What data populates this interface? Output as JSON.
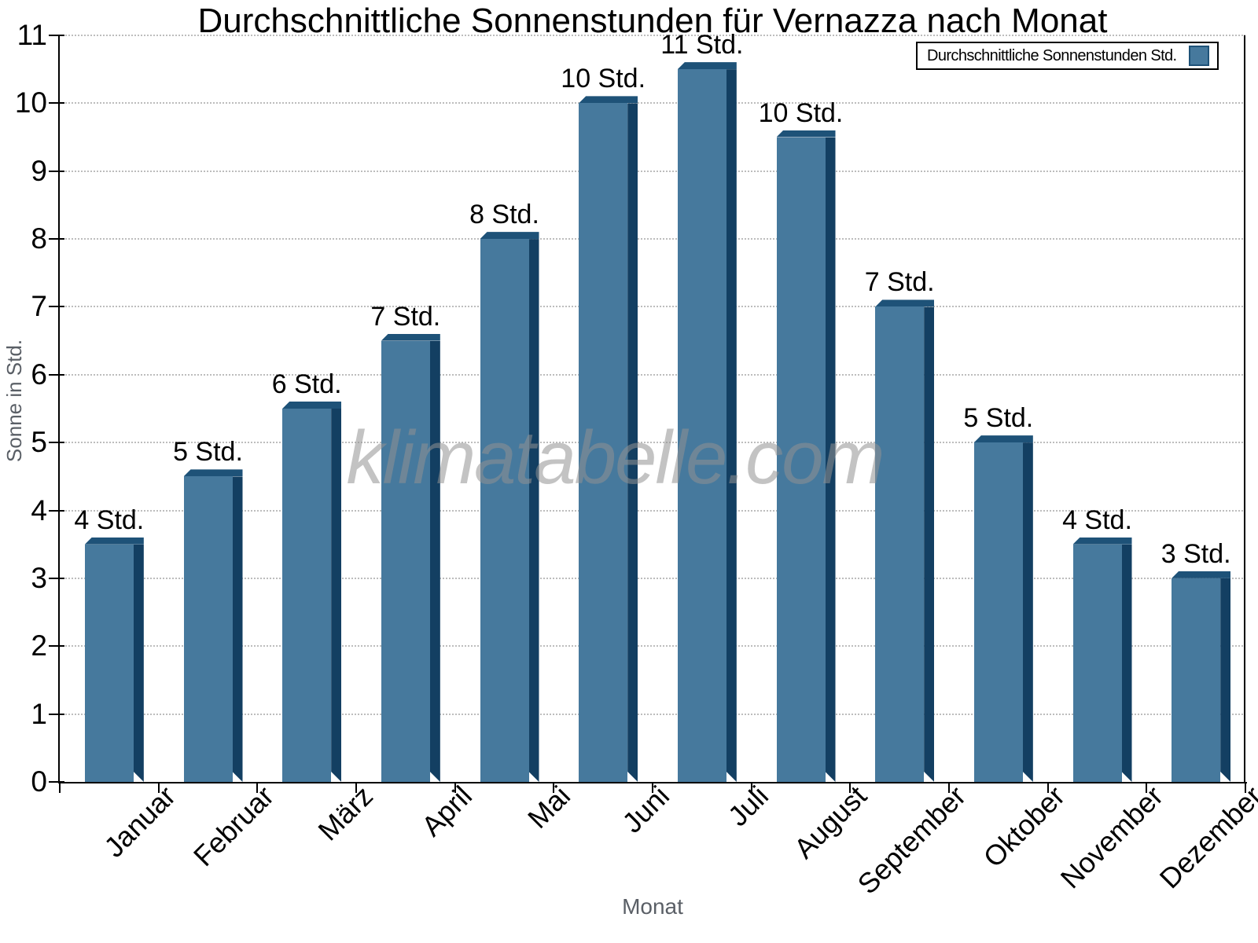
{
  "title": "Durchschnittliche Sonnenstunden für Vernazza nach Monat",
  "watermark": "klimatabelle.com",
  "legend": {
    "label": "Durchschnittliche Sonnenstunden Std.",
    "position": "top-right"
  },
  "axes": {
    "y_label": "Sonne in Std.",
    "x_label": "Monat",
    "y_ticks": [
      0,
      1,
      2,
      3,
      4,
      5,
      6,
      7,
      8,
      9,
      10,
      11
    ]
  },
  "colors": {
    "bar": "#46799d",
    "bar_top_edge": "#1e5278",
    "bar_right_edge": "#133f62",
    "legend_swatch_border": "#1e5278",
    "grid": "#bdbdbd",
    "axis": "#000000",
    "muted_text": "#5a5f66",
    "watermark_gray": "#919191"
  },
  "chart_data": {
    "type": "bar",
    "title": "Durchschnittliche Sonnenstunden für Vernazza nach Monat",
    "xlabel": "Monat",
    "ylabel": "Sonne in Std.",
    "ylim": [
      0,
      11
    ],
    "grid": "horizontal-dotted",
    "legend_position": "top-right",
    "categories": [
      "Januar",
      "Februar",
      "März",
      "April",
      "Mai",
      "Juni",
      "Juli",
      "August",
      "September",
      "Oktober",
      "November",
      "Dezember"
    ],
    "series": [
      {
        "name": "Durchschnittliche Sonnenstunden Std.",
        "values": [
          3.5,
          4.5,
          5.5,
          6.5,
          8.0,
          10.0,
          10.5,
          9.5,
          7.0,
          5.0,
          3.5,
          3.0
        ],
        "bar_labels": [
          "4 Std.",
          "5 Std.",
          "6 Std.",
          "7 Std.",
          "8 Std.",
          "10 Std.",
          "11 Std.",
          "10 Std.",
          "7 Std.",
          "5 Std.",
          "4 Std.",
          "3 Std."
        ]
      }
    ]
  }
}
